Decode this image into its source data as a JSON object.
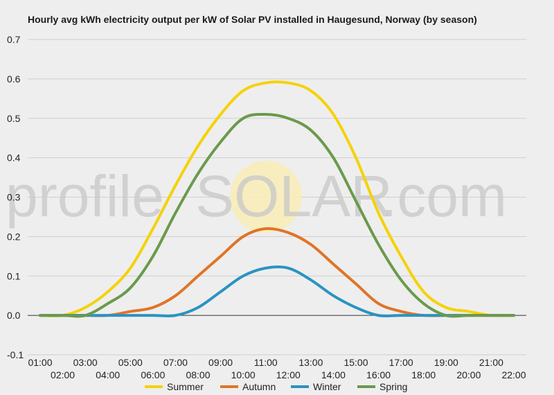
{
  "chart_data": {
    "type": "line",
    "title": "Hourly avg kWh electricity output per kW of Solar PV installed in Haugesund, Norway (by season)",
    "xlabel": "",
    "ylabel": "",
    "x": [
      "01:00",
      "02:00",
      "03:00",
      "04:00",
      "05:00",
      "06:00",
      "07:00",
      "08:00",
      "09:00",
      "10:00",
      "11:00",
      "12:00",
      "13:00",
      "14:00",
      "15:00",
      "16:00",
      "17:00",
      "18:00",
      "19:00",
      "20:00",
      "21:00",
      "22:00"
    ],
    "yticks": [
      "0.7",
      "0.6",
      "0.5",
      "0.4",
      "0.3",
      "0.2",
      "0.1",
      "0.0",
      "-0.1"
    ],
    "ylim": [
      -0.1,
      0.7
    ],
    "grid": "horizontal",
    "legend_position": "bottom",
    "series": [
      {
        "name": "Summer",
        "color": "#f5d20a",
        "values": [
          0.0,
          0.0,
          0.02,
          0.06,
          0.12,
          0.22,
          0.33,
          0.43,
          0.51,
          0.57,
          0.59,
          0.59,
          0.57,
          0.51,
          0.4,
          0.26,
          0.15,
          0.06,
          0.02,
          0.01,
          0.0,
          0.0
        ]
      },
      {
        "name": "Autumn",
        "color": "#e07427",
        "values": [
          0.0,
          0.0,
          0.0,
          0.0,
          0.01,
          0.02,
          0.05,
          0.1,
          0.15,
          0.2,
          0.22,
          0.21,
          0.18,
          0.13,
          0.08,
          0.03,
          0.01,
          0.0,
          0.0,
          0.0,
          0.0,
          0.0
        ]
      },
      {
        "name": "Winter",
        "color": "#2a93c3",
        "values": [
          0.0,
          0.0,
          0.0,
          0.0,
          0.0,
          0.0,
          0.0,
          0.02,
          0.06,
          0.1,
          0.12,
          0.12,
          0.09,
          0.05,
          0.02,
          0.0,
          0.0,
          0.0,
          0.0,
          0.0,
          0.0,
          0.0
        ]
      },
      {
        "name": "Spring",
        "color": "#6a9a4c",
        "values": [
          0.0,
          0.0,
          0.0,
          0.03,
          0.07,
          0.15,
          0.26,
          0.36,
          0.44,
          0.5,
          0.51,
          0.5,
          0.47,
          0.4,
          0.29,
          0.18,
          0.09,
          0.03,
          0.0,
          0.0,
          0.0,
          0.0
        ]
      }
    ],
    "watermark": {
      "left": "profile",
      "logo": "SOLAR",
      "right": ".com"
    }
  }
}
